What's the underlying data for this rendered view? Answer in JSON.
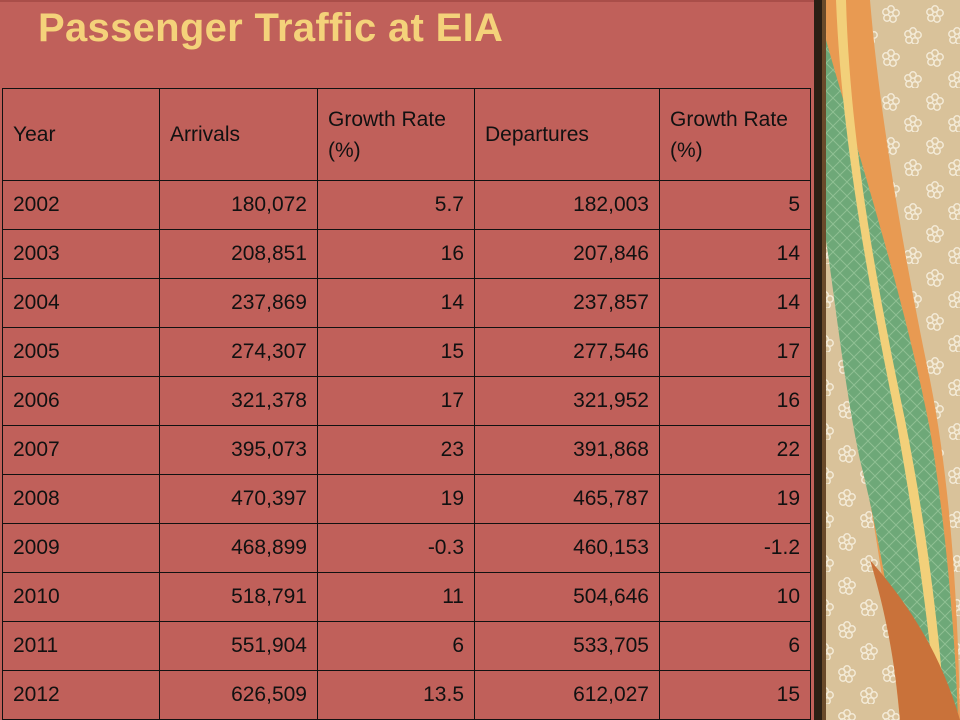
{
  "slide": {
    "title": "Passenger Traffic at EIA",
    "colors": {
      "background": "#c0605a",
      "title": "#f4d27a",
      "decor_beige": "#d9c29a",
      "decor_green": "#6ea878",
      "decor_orange": "#e89a52"
    }
  },
  "table": {
    "headers": [
      "Year",
      "Arrivals",
      "Growth Rate (%)",
      "Departures",
      "Growth Rate (%)"
    ],
    "rows": [
      [
        "2002",
        "180,072",
        "5.7",
        "182,003",
        "5"
      ],
      [
        "2003",
        "208,851",
        "16",
        "207,846",
        "14"
      ],
      [
        "2004",
        "237,869",
        "14",
        "237,857",
        "14"
      ],
      [
        "2005",
        "274,307",
        "15",
        "277,546",
        "17"
      ],
      [
        "2006",
        "321,378",
        "17",
        "321,952",
        "16"
      ],
      [
        "2007",
        "395,073",
        "23",
        "391,868",
        "22"
      ],
      [
        "2008",
        "470,397",
        "19",
        "465,787",
        "19"
      ],
      [
        "2009",
        "468,899",
        "-0.3",
        "460,153",
        "-1.2"
      ],
      [
        "2010",
        "518,791",
        "11",
        "504,646",
        "10"
      ],
      [
        "2011",
        "551,904",
        "6",
        "533,705",
        "6"
      ],
      [
        "2012",
        "626,509",
        "13.5",
        "612,027",
        "15"
      ]
    ]
  }
}
